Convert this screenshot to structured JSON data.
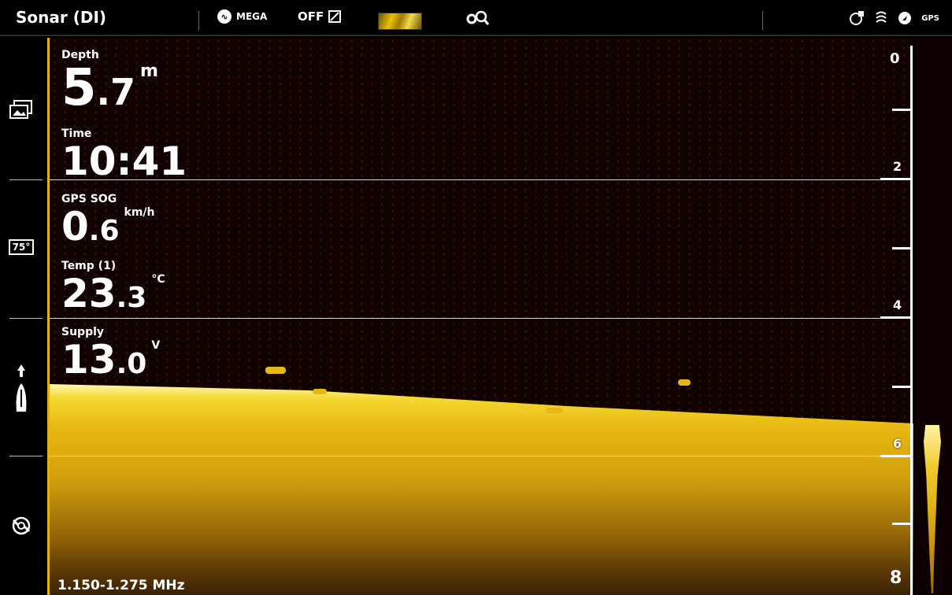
{
  "topbar": {
    "title": "Sonar (DI)",
    "mega_label": "MEGA",
    "off_label": "OFF"
  },
  "readouts": {
    "depth": {
      "label": "Depth",
      "int": "5",
      "dec": ".7",
      "unit": "m"
    },
    "time": {
      "label": "Time",
      "value": "10:41"
    },
    "sog": {
      "label": "GPS SOG",
      "int": "0",
      "dec": ".6",
      "unit": "km/h"
    },
    "temp": {
      "label": "Temp (1)",
      "int": "23",
      "dec": ".3",
      "unit": "°C"
    },
    "supply": {
      "label": "Supply",
      "int": "13",
      "dec": ".0",
      "unit": "V"
    }
  },
  "sidebar": {
    "temp_icon_label": "75°"
  },
  "frequency": "1.150-1.275 MHz",
  "depth_scale": {
    "labels": [
      "0",
      "2",
      "4",
      "6",
      "8"
    ]
  },
  "colors": {
    "accent": "#e3b110",
    "background": "#110200"
  }
}
